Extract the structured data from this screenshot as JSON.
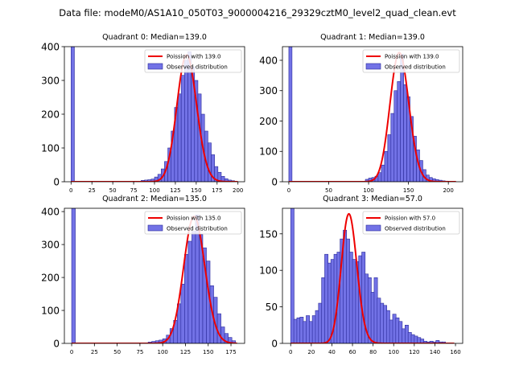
{
  "figure_title": "Data file: modeM0/AS1A10_050T03_9000004216_29329cztM0_level2_quad_clean.evt",
  "colors": {
    "bar_fill": "#7272e6",
    "bar_edge": "#2a2a9a",
    "curve": "#ee0000"
  },
  "chart_data": [
    {
      "type": "bar",
      "title": "Quadrant 0: Median=139.0",
      "median": 139.0,
      "legend": [
        "Poission with 139.0",
        "Observed distribution"
      ],
      "legend_position": "top-right",
      "xlim": [
        -8,
        208
      ],
      "ylim": [
        0,
        400
      ],
      "xticks": [
        0,
        25,
        50,
        75,
        100,
        125,
        150,
        175,
        200
      ],
      "yticks": [
        0,
        100,
        200,
        300,
        400
      ],
      "bin_width": 4,
      "bins": [
        [
          0,
          400
        ],
        [
          84,
          4
        ],
        [
          88,
          5
        ],
        [
          92,
          6
        ],
        [
          96,
          8
        ],
        [
          100,
          14
        ],
        [
          104,
          22
        ],
        [
          108,
          38
        ],
        [
          112,
          60
        ],
        [
          116,
          100
        ],
        [
          120,
          150
        ],
        [
          124,
          220
        ],
        [
          128,
          260
        ],
        [
          132,
          315
        ],
        [
          136,
          360
        ],
        [
          140,
          385
        ],
        [
          144,
          340
        ],
        [
          148,
          300
        ],
        [
          152,
          260
        ],
        [
          156,
          200
        ],
        [
          160,
          150
        ],
        [
          164,
          115
        ],
        [
          168,
          80
        ],
        [
          172,
          45
        ],
        [
          176,
          28
        ],
        [
          180,
          16
        ],
        [
          184,
          9
        ],
        [
          188,
          5
        ],
        [
          192,
          3
        ]
      ],
      "poisson_peak": 375,
      "poisson_sigma_scale": 1.0
    },
    {
      "type": "bar",
      "title": "Quadrant 1: Median=139.0",
      "median": 139.0,
      "legend": [
        "Poission with 139.0",
        "Observed distribution"
      ],
      "legend_position": "top-right",
      "xlim": [
        -8,
        218
      ],
      "ylim": [
        0,
        445
      ],
      "xticks": [
        0,
        50,
        100,
        150,
        200
      ],
      "yticks": [
        0,
        100,
        200,
        300,
        400
      ],
      "bin_width": 4,
      "bins": [
        [
          0,
          445
        ],
        [
          96,
          8
        ],
        [
          100,
          12
        ],
        [
          104,
          14
        ],
        [
          108,
          18
        ],
        [
          112,
          30
        ],
        [
          116,
          55
        ],
        [
          120,
          100
        ],
        [
          124,
          155
        ],
        [
          128,
          225
        ],
        [
          132,
          300
        ],
        [
          136,
          330
        ],
        [
          140,
          420
        ],
        [
          144,
          320
        ],
        [
          148,
          280
        ],
        [
          152,
          215
        ],
        [
          156,
          150
        ],
        [
          160,
          105
        ],
        [
          164,
          70
        ],
        [
          168,
          40
        ],
        [
          172,
          22
        ],
        [
          176,
          14
        ],
        [
          180,
          10
        ],
        [
          184,
          7
        ],
        [
          188,
          5
        ],
        [
          192,
          3
        ],
        [
          196,
          2
        ]
      ],
      "poisson_peak": 425,
      "poisson_sigma_scale": 1.0
    },
    {
      "type": "bar",
      "title": "Quadrant 2: Median=135.0",
      "median": 135.0,
      "legend": [
        "Poission with 135.0",
        "Observed distribution"
      ],
      "legend_position": "top-right",
      "xlim": [
        -8,
        190
      ],
      "ylim": [
        0,
        410
      ],
      "xticks": [
        0,
        25,
        50,
        75,
        100,
        125,
        150,
        175
      ],
      "yticks": [
        0,
        100,
        200,
        300,
        400
      ],
      "bin_width": 4,
      "bins": [
        [
          0,
          410
        ],
        [
          84,
          4
        ],
        [
          88,
          6
        ],
        [
          92,
          8
        ],
        [
          96,
          10
        ],
        [
          100,
          14
        ],
        [
          104,
          25
        ],
        [
          108,
          45
        ],
        [
          112,
          70
        ],
        [
          116,
          120
        ],
        [
          120,
          180
        ],
        [
          124,
          270
        ],
        [
          128,
          310
        ],
        [
          132,
          340
        ],
        [
          136,
          390
        ],
        [
          140,
          330
        ],
        [
          144,
          290
        ],
        [
          148,
          250
        ],
        [
          152,
          175
        ],
        [
          156,
          140
        ],
        [
          160,
          90
        ],
        [
          164,
          50
        ],
        [
          168,
          30
        ],
        [
          172,
          18
        ],
        [
          176,
          8
        ]
      ],
      "poisson_peak": 385,
      "poisson_sigma_scale": 1.0
    },
    {
      "type": "bar",
      "title": "Quadrant 3: Median=57.0",
      "median": 57.0,
      "legend": [
        "Poission with 57.0",
        "Observed distribution"
      ],
      "legend_position": "top-right",
      "xlim": [
        -8,
        167
      ],
      "ylim": [
        0,
        185
      ],
      "xticks": [
        0,
        20,
        40,
        60,
        80,
        100,
        120,
        140,
        160
      ],
      "yticks": [
        0,
        50,
        100,
        150
      ],
      "bin_width": 3.3,
      "bins": [
        [
          0,
          185
        ],
        [
          3,
          33
        ],
        [
          6,
          35
        ],
        [
          9,
          36
        ],
        [
          12,
          30
        ],
        [
          15,
          38
        ],
        [
          18,
          30
        ],
        [
          21,
          38
        ],
        [
          24,
          45
        ],
        [
          27,
          55
        ],
        [
          30,
          90
        ],
        [
          33,
          122
        ],
        [
          36,
          110
        ],
        [
          39,
          115
        ],
        [
          42,
          122
        ],
        [
          45,
          125
        ],
        [
          48,
          143
        ],
        [
          51,
          155
        ],
        [
          54,
          143
        ],
        [
          57,
          125
        ],
        [
          60,
          115
        ],
        [
          63,
          112
        ],
        [
          66,
          120
        ],
        [
          69,
          125
        ],
        [
          72,
          95
        ],
        [
          75,
          90
        ],
        [
          78,
          70
        ],
        [
          81,
          90
        ],
        [
          84,
          62
        ],
        [
          87,
          55
        ],
        [
          90,
          52
        ],
        [
          93,
          45
        ],
        [
          96,
          32
        ],
        [
          99,
          40
        ],
        [
          102,
          35
        ],
        [
          105,
          30
        ],
        [
          108,
          20
        ],
        [
          111,
          25
        ],
        [
          114,
          15
        ],
        [
          117,
          12
        ],
        [
          120,
          10
        ],
        [
          123,
          8
        ],
        [
          126,
          6
        ],
        [
          129,
          3
        ],
        [
          132,
          2
        ],
        [
          135,
          3
        ],
        [
          138,
          2
        ],
        [
          141,
          4
        ],
        [
          144,
          2
        ],
        [
          147,
          2
        ]
      ],
      "poisson_peak": 177,
      "poisson_sigma_scale": 1.0
    }
  ]
}
